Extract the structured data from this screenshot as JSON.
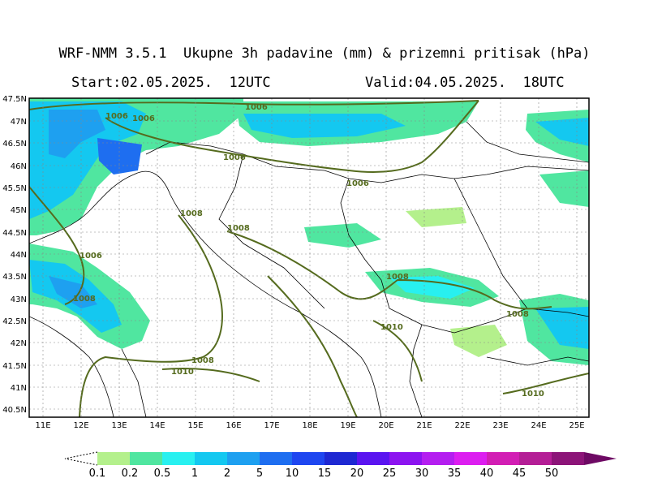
{
  "header": {
    "title": "WRF-NMM 3.5.1  Ukupne 3h padavine (mm) & prizemni pritisak (hPa)",
    "start": "Start:02.05.2025.  12UTC",
    "valid": "Valid:04.05.2025.  18UTC"
  },
  "map": {
    "lat_labels": [
      "47.5N",
      "47N",
      "46.5N",
      "46N",
      "45.5N",
      "45N",
      "44.5N",
      "44N",
      "43.5N",
      "43N",
      "42.5N",
      "42N",
      "41.5N",
      "41N",
      "40.5N"
    ],
    "lon_labels": [
      "11E",
      "12E",
      "13E",
      "14E",
      "15E",
      "16E",
      "17E",
      "18E",
      "19E",
      "20E",
      "21E",
      "22E",
      "23E",
      "24E",
      "25E"
    ],
    "isobar_labels": [
      {
        "text": "1006"
      },
      {
        "text": "1006"
      },
      {
        "text": "1006"
      },
      {
        "text": "1006"
      },
      {
        "text": "1006"
      },
      {
        "text": "1008"
      },
      {
        "text": "1008"
      },
      {
        "text": "1006"
      },
      {
        "text": "1008"
      },
      {
        "text": "1008"
      },
      {
        "text": "1008"
      },
      {
        "text": "1010"
      },
      {
        "text": "1008"
      },
      {
        "text": "1010"
      },
      {
        "text": "1010"
      }
    ]
  },
  "legend": {
    "labels": [
      "0.1",
      "0.2",
      "0.5",
      "1",
      "2",
      "5",
      "10",
      "15",
      "20",
      "25",
      "30",
      "35",
      "40",
      "45",
      "50"
    ],
    "colors": [
      "#b4f08c",
      "#50e6a0",
      "#28f0f0",
      "#14c8f0",
      "#1ea0f0",
      "#1e6ef0",
      "#1e46f0",
      "#1e28d2",
      "#5a14f0",
      "#8c14f0",
      "#b41ef0",
      "#dc1ef0",
      "#d21eb4",
      "#b41e96",
      "#8c1478",
      "#6e0a64"
    ]
  }
}
